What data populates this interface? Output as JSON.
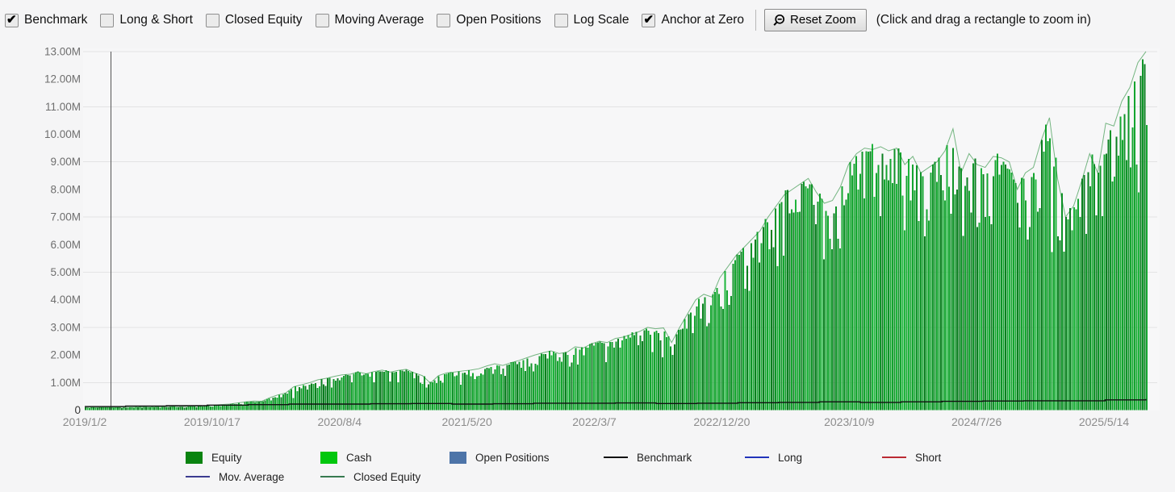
{
  "toolbar": {
    "checkboxes": [
      {
        "label": "Benchmark",
        "checked": true
      },
      {
        "label": "Long & Short",
        "checked": false
      },
      {
        "label": "Closed Equity",
        "checked": false
      },
      {
        "label": "Moving Average",
        "checked": false
      },
      {
        "label": "Open Positions",
        "checked": false
      },
      {
        "label": "Log Scale",
        "checked": false
      },
      {
        "label": "Anchor at Zero",
        "checked": true
      }
    ],
    "reset_zoom_label": "Reset Zoom",
    "hint": "(Click and drag a rectangle to zoom in)"
  },
  "chart_data": {
    "type": "area",
    "title": "",
    "xlabel": "",
    "ylabel": "",
    "ylim_M": [
      0,
      13
    ],
    "grid": "horizontal, every 2M at odd values",
    "gridline_values_M": [
      13,
      11,
      9,
      7,
      5,
      3,
      1
    ],
    "y_ticks": [
      {
        "label": "13.00M",
        "v": 13
      },
      {
        "label": "12.00M",
        "v": 12
      },
      {
        "label": "11.00M",
        "v": 11
      },
      {
        "label": "10.00M",
        "v": 10
      },
      {
        "label": "9.00M",
        "v": 9
      },
      {
        "label": "8.00M",
        "v": 8
      },
      {
        "label": "7.00M",
        "v": 7
      },
      {
        "label": "6.00M",
        "v": 6
      },
      {
        "label": "5.00M",
        "v": 5
      },
      {
        "label": "4.00M",
        "v": 4
      },
      {
        "label": "3.00M",
        "v": 3
      },
      {
        "label": "2.00M",
        "v": 2
      },
      {
        "label": "1.00M",
        "v": 1
      },
      {
        "label": "0",
        "v": 0
      }
    ],
    "x_ticks": [
      "2019/1/2",
      "2019/10/17",
      "2020/8/4",
      "2021/5/20",
      "2022/3/7",
      "2022/12/20",
      "2023/10/9",
      "2024/7/26",
      "2025/5/14"
    ],
    "series": [
      {
        "name": "Equity/Cash area (millions, sampled uniformly 2019/1/2 to end)",
        "color": "#14a52f",
        "values": [
          0.1,
          0.1,
          0.1,
          0.11,
          0.1,
          0.11,
          0.11,
          0.12,
          0.11,
          0.12,
          0.12,
          0.13,
          0.12,
          0.14,
          0.14,
          0.16,
          0.18,
          0.2,
          0.22,
          0.26,
          0.3,
          0.33,
          0.32,
          0.45,
          0.55,
          0.62,
          0.85,
          0.92,
          1.0,
          1.1,
          1.15,
          1.22,
          1.28,
          1.3,
          1.38,
          1.32,
          1.4,
          1.45,
          1.38,
          1.44,
          1.48,
          1.35,
          1.25,
          0.98,
          1.25,
          1.35,
          1.38,
          1.42,
          1.45,
          1.5,
          1.6,
          1.68,
          1.62,
          1.72,
          1.8,
          1.9,
          2.0,
          2.08,
          2.15,
          2.05,
          2.1,
          2.3,
          2.25,
          2.4,
          2.5,
          2.45,
          2.6,
          2.65,
          2.75,
          2.85,
          3.0,
          2.95,
          2.98,
          2.45,
          3.0,
          3.5,
          4.0,
          4.2,
          4.1,
          4.8,
          5.2,
          5.6,
          5.9,
          6.2,
          6.5,
          7.0,
          7.4,
          7.8,
          8.0,
          8.2,
          8.4,
          7.9,
          7.5,
          7.6,
          8.1,
          8.9,
          9.3,
          9.5,
          9.45,
          9.55,
          9.4,
          9.5,
          8.9,
          9.2,
          8.6,
          8.8,
          9.0,
          9.4,
          10.2,
          8.6,
          9.3,
          8.9,
          8.8,
          9.2,
          9.15,
          9.0,
          8.0,
          8.6,
          8.8,
          9.8,
          10.6,
          8.4,
          7.0,
          7.4,
          8.3,
          9.3,
          8.6,
          10.4,
          10.3,
          11.2,
          11.7,
          12.6,
          13.0
        ]
      },
      {
        "name": "Benchmark (millions, sampled uniformly)",
        "color": "#111111",
        "values": [
          0.13,
          0.15,
          0.16,
          0.18,
          0.2,
          0.22,
          0.22,
          0.23,
          0.24,
          0.22,
          0.23,
          0.25,
          0.25,
          0.26,
          0.24,
          0.25,
          0.27,
          0.28,
          0.3,
          0.28,
          0.3,
          0.32,
          0.33,
          0.34,
          0.34,
          0.37,
          0.4
        ]
      }
    ],
    "legend_position": "bottom"
  },
  "legend": {
    "items": [
      {
        "label": "Equity",
        "swatch": "box",
        "color": "#0a8310"
      },
      {
        "label": "Cash",
        "swatch": "box",
        "color": "#02c70e"
      },
      {
        "label": "Open Positions",
        "swatch": "box",
        "color": "#4d74a8"
      },
      {
        "label": "Benchmark",
        "swatch": "line",
        "color": "#111111"
      },
      {
        "label": "Long",
        "swatch": "line",
        "color": "#2233bb"
      },
      {
        "label": "Short",
        "swatch": "line",
        "color": "#bb2a33"
      },
      {
        "label": "Mov. Average",
        "swatch": "line",
        "color": "#3c3c90"
      },
      {
        "label": "Closed Equity",
        "swatch": "line",
        "color": "#377a50"
      }
    ]
  },
  "colors": {
    "background": "#f5f5f6",
    "plot_background": "#f7f7f8",
    "grid": "#e3e3e4",
    "y_axis_text": "#6e6e6e",
    "zero_text": "#333333",
    "x_axis_text": "#8c8c8c",
    "axis_line": "#555555",
    "area_base": "#14a52f",
    "area_mid": "#0f9428",
    "area_dark": "#0a7f1f",
    "area_light": "#1eb43b",
    "benchmark": "#111111"
  }
}
